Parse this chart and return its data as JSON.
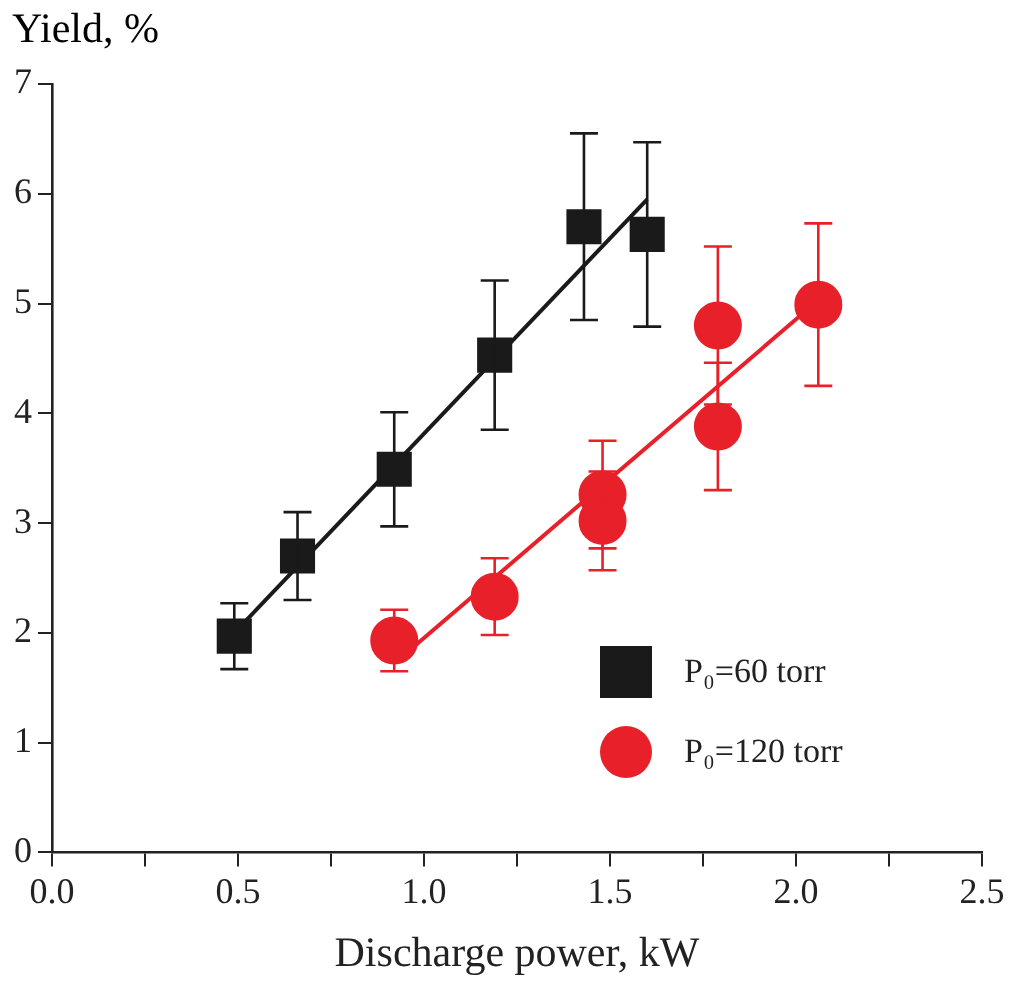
{
  "chart_data": {
    "type": "scatter",
    "xlabel": "Discharge power, kW",
    "ylabel": "Yield, %",
    "xlim": [
      0,
      2.5
    ],
    "xticks": [
      {
        "value": 0,
        "label": "0.0"
      },
      {
        "value": 0.25,
        "label": null
      },
      {
        "value": 0.5,
        "label": "0.5"
      },
      {
        "value": 0.75,
        "label": null
      },
      {
        "value": 1,
        "label": "1.0"
      },
      {
        "value": 1.25,
        "label": null
      },
      {
        "value": 1.5,
        "label": "1.5"
      },
      {
        "value": 1.75,
        "label": null
      },
      {
        "value": 2,
        "label": "2.0"
      },
      {
        "value": 2.25,
        "label": null
      },
      {
        "value": 2.5,
        "label": "2.5"
      }
    ],
    "ylim": [
      0,
      7
    ],
    "yticks": [
      0,
      1,
      2,
      3,
      4,
      5,
      6,
      7
    ],
    "grid": false,
    "legend": "bottom right",
    "series": [
      {
        "name": "P₀=60 torr",
        "type": "scatter",
        "marker": "square",
        "color": "#1a1a1a",
        "x": [
          0.49,
          0.66,
          0.92,
          1.19,
          1.43,
          1.6
        ],
        "values": [
          1.97,
          2.7,
          3.49,
          4.53,
          5.7,
          5.63
        ],
        "errors": [
          0.3,
          0.4,
          0.52,
          0.68,
          0.85,
          0.84
        ]
      },
      {
        "name": "P₀=120 torr",
        "type": "scatter",
        "marker": "circle",
        "color": "#e8202a",
        "x": [
          0.92,
          1.19,
          1.48,
          1.48,
          1.79,
          1.79,
          2.06
        ],
        "values": [
          1.93,
          2.33,
          3.26,
          3.02,
          4.8,
          3.88,
          4.99
        ],
        "errors": [
          0.28,
          0.35,
          0.49,
          0.45,
          0.72,
          0.58,
          0.74
        ]
      },
      {
        "type": "line",
        "marker": "none",
        "color": "#1a1a1a",
        "x": [
          0.49,
          1.6
        ],
        "values": [
          2.0,
          5.95
        ]
      },
      {
        "type": "line",
        "marker": "none",
        "color": "#e8202a",
        "x": [
          0.93,
          2.06
        ],
        "values": [
          1.75,
          5.03
        ]
      }
    ]
  }
}
